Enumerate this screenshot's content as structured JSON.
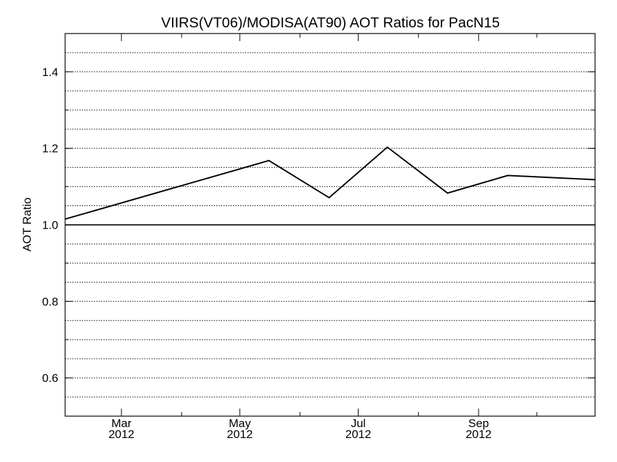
{
  "chart_data": {
    "type": "line",
    "title": "VIIRS(VT06)/MODISA(AT90)  AOT Ratios for PacN15",
    "xlabel": "",
    "ylabel": "AOT Ratio",
    "ylim": [
      0.5,
      1.5
    ],
    "xlim": [
      "2012-02-01",
      "2012-10-31"
    ],
    "grid": true,
    "grid_style": "dotted",
    "reference_line": 1.0,
    "yticks": [
      {
        "value": 0.6,
        "label": "0.6"
      },
      {
        "value": 0.8,
        "label": "0.8"
      },
      {
        "value": 1.0,
        "label": "1.0"
      },
      {
        "value": 1.2,
        "label": "1.2"
      },
      {
        "value": 1.4,
        "label": "1.4"
      }
    ],
    "xticks": [
      {
        "date": "2012-03-01",
        "label": "Mar",
        "sublabel": "2012"
      },
      {
        "date": "2012-05-01",
        "label": "May",
        "sublabel": "2012"
      },
      {
        "date": "2012-07-01",
        "label": "Jul",
        "sublabel": "2012"
      },
      {
        "date": "2012-09-01",
        "label": "Sep",
        "sublabel": "2012"
      }
    ],
    "series": [
      {
        "x": [
          "2012-02-01",
          "2012-05-16",
          "2012-06-16",
          "2012-07-16",
          "2012-08-16",
          "2012-09-16",
          "2012-10-31"
        ],
        "values": [
          1.015,
          1.168,
          1.071,
          1.203,
          1.083,
          1.129,
          1.118
        ]
      }
    ]
  }
}
